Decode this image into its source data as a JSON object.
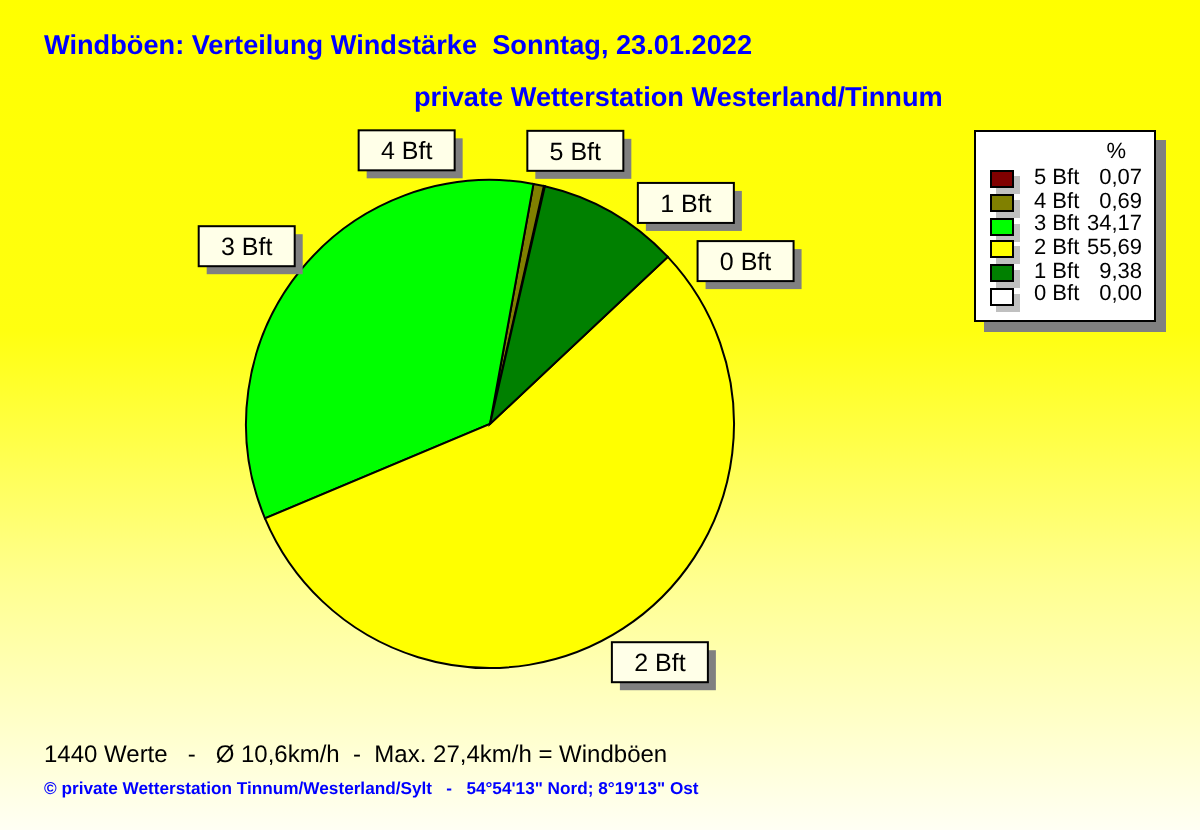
{
  "chart_data": {
    "type": "pie",
    "title": "Windböen: Verteilung Windstärke  Sonntag, 23.01.2022",
    "subtitle": "private Wetterstation Westerland/Tinnum",
    "categories": [
      "5 Bft",
      "4 Bft",
      "3 Bft",
      "2 Bft",
      "1 Bft",
      "0 Bft"
    ],
    "values": [
      0.07,
      0.69,
      34.17,
      55.69,
      9.38,
      0
    ],
    "value_labels": [
      "0,07",
      "0,69",
      "34,17",
      "55,69",
      "9,38",
      "0,00"
    ],
    "colors": [
      "#800000",
      "#808000",
      "#00ff00",
      "#ffff00",
      "#008000",
      "#ffffff"
    ],
    "legend": "top right",
    "legend_title": "%",
    "annotations": [
      "1440 Werte   -   Ø 10,6km/h  -  Max. 27,4km/h = Windböen",
      "© private Wetterstation Tinnum/Westerland/Sylt   -   54°54'13\" Nord; 8°19'13\" Ost"
    ]
  }
}
